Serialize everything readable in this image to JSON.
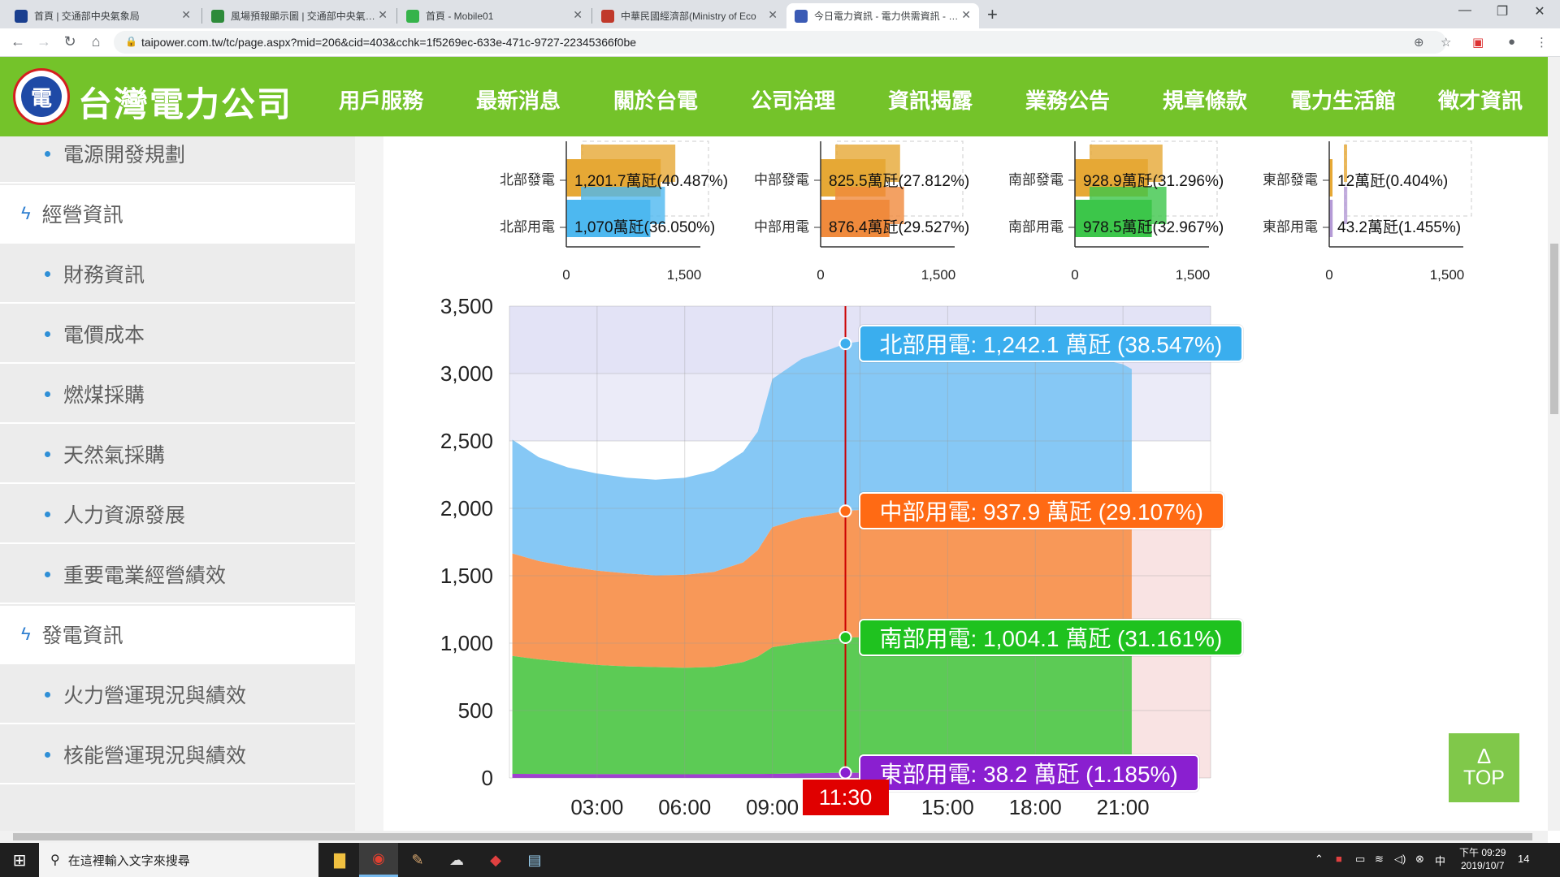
{
  "browser": {
    "tabs": [
      {
        "title": "首頁 | 交通部中央氣象局",
        "favicon_color": "#1a3f8f"
      },
      {
        "title": "風場預報顯示圖 | 交通部中央氣…",
        "favicon_color": "#2e8b3a"
      },
      {
        "title": "首頁 - Mobile01",
        "favicon_color": "#35b34a"
      },
      {
        "title": "中華民國經濟部(Ministry of Eco",
        "favicon_color": "#c0392b"
      },
      {
        "title": "今日電力資訊 - 電力供需資訊 - …",
        "favicon_color": "#3b5bb5"
      }
    ],
    "tab_close": "✕",
    "new_tab": "+",
    "window_controls": [
      "—",
      "❐",
      "✕"
    ],
    "url": "taipower.com.tw/tc/page.aspx?mid=206&cid=403&cchk=1f5269ec-633e-471c-9727-22345366f0be"
  },
  "site": {
    "logo_text": "台灣電力公司",
    "logo_mark": "電",
    "menu": [
      "用戶服務",
      "最新消息",
      "關於台電",
      "公司治理",
      "資訊揭露",
      "業務公告",
      "規章條款",
      "電力生活館",
      "徵才資訊"
    ]
  },
  "sidebar": {
    "items": [
      {
        "label": "電源開發規劃",
        "kind": "sub"
      },
      {
        "label": "經營資訊",
        "kind": "head"
      },
      {
        "label": "財務資訊",
        "kind": "sub"
      },
      {
        "label": "電價成本",
        "kind": "sub"
      },
      {
        "label": "燃煤採購",
        "kind": "sub"
      },
      {
        "label": "天然氣採購",
        "kind": "sub"
      },
      {
        "label": "人力資源發展",
        "kind": "sub"
      },
      {
        "label": "重要電業經營績效",
        "kind": "sub"
      },
      {
        "label": "發電資訊",
        "kind": "head"
      },
      {
        "label": "火力營運現況與績效",
        "kind": "sub"
      },
      {
        "label": "核能營運現況與績效",
        "kind": "sub"
      }
    ]
  },
  "regions": [
    {
      "gen_label": "北部發電",
      "use_label": "北部用電",
      "gen": 1201.7,
      "gen_text": "1,201.7萬瓩(40.487%)",
      "use": 1070,
      "use_text": "1,070萬瓩(36.050%)",
      "gen_color": "#e6a835",
      "use_color": "#4db8f0"
    },
    {
      "gen_label": "中部發電",
      "use_label": "中部用電",
      "gen": 825.5,
      "gen_text": "825.5萬瓩(27.812%)",
      "use": 876.4,
      "use_text": "876.4萬瓩(29.527%)",
      "gen_color": "#e6a835",
      "use_color": "#f08a3c"
    },
    {
      "gen_label": "南部發電",
      "use_label": "南部用電",
      "gen": 928.9,
      "gen_text": "928.9萬瓩(31.296%)",
      "use": 978.5,
      "use_text": "978.5萬瓩(32.967%)",
      "gen_color": "#e6a835",
      "use_color": "#3cc64a"
    },
    {
      "gen_label": "東部發電",
      "use_label": "東部用電",
      "gen": 12,
      "gen_text": "12萬瓩(0.404%)",
      "use": 43.2,
      "use_text": "43.2萬瓩(1.455%)",
      "gen_color": "#e6a835",
      "use_color": "#b49ad6"
    }
  ],
  "region_axis_ticks": [
    "0",
    "1,500"
  ],
  "chart_data": {
    "type": "area",
    "stacked": true,
    "x_ticks": [
      "03:00",
      "06:00",
      "09:00",
      "15:00",
      "18:00",
      "21:00"
    ],
    "y_ticks": [
      0,
      500,
      1000,
      1500,
      2000,
      2500,
      3000,
      3500
    ],
    "ylim": [
      0,
      3500
    ],
    "x_range_hours": [
      0,
      24
    ],
    "current_time": "11:30",
    "series": [
      {
        "name": "東部用電",
        "color": "#a040d0",
        "x": [
          0.1,
          3,
          6,
          9,
          11.5,
          21.3
        ],
        "values": [
          30,
          28,
          27,
          30,
          38.2,
          33
        ]
      },
      {
        "name": "南部用電",
        "color": "#5ccb55",
        "x": [
          0.1,
          1,
          2,
          3,
          4,
          5,
          6,
          7,
          8,
          8.5,
          9,
          10,
          11,
          11.5,
          12,
          13,
          14,
          15,
          16,
          17,
          18,
          19,
          20,
          21,
          21.3
        ],
        "values": [
          875,
          850,
          830,
          810,
          800,
          795,
          790,
          795,
          830,
          870,
          940,
          970,
          990,
          1004,
          1005,
          1000,
          1005,
          1000,
          990,
          980,
          970,
          975,
          960,
          940,
          930
        ]
      },
      {
        "name": "中部用電",
        "color": "#f89858",
        "x": [
          0.1,
          1,
          2,
          3,
          4,
          5,
          6,
          7,
          8,
          8.5,
          9,
          10,
          11,
          11.5,
          12,
          13,
          14,
          15,
          16,
          17,
          18,
          19,
          20,
          21,
          21.3
        ],
        "values": [
          760,
          730,
          710,
          700,
          690,
          680,
          690,
          705,
          740,
          790,
          890,
          925,
          935,
          938,
          945,
          950,
          955,
          950,
          945,
          940,
          935,
          925,
          915,
          905,
          900
        ]
      },
      {
        "name": "北部用電",
        "color": "#86c8f5",
        "x": [
          0.1,
          1,
          2,
          3,
          4,
          5,
          6,
          7,
          8,
          8.5,
          9,
          10,
          11,
          11.5,
          12,
          13,
          14,
          15,
          16,
          17,
          18,
          19,
          20,
          21,
          21.3
        ],
        "values": [
          845,
          770,
          735,
          720,
          710,
          710,
          720,
          750,
          820,
          880,
          1100,
          1180,
          1220,
          1242,
          1250,
          1245,
          1240,
          1245,
          1240,
          1235,
          1230,
          1225,
          1210,
          1190,
          1170
        ]
      }
    ],
    "bands": [
      {
        "from": 2500,
        "to": 3000,
        "color": "#ebebf8"
      },
      {
        "from": 3000,
        "to": 3500,
        "color": "#e3e3f6"
      }
    ],
    "tooltips": [
      {
        "text": "北部用電: 1,242.1 萬瓩 (38.547%)",
        "color": "#3aaeee",
        "value": 3222.3
      },
      {
        "text": "中部用電: 937.9 萬瓩 (29.107%)",
        "color": "#ff6a14",
        "value": 1980.2
      },
      {
        "text": "南部用電: 1,004.1 萬瓩 (31.161%)",
        "color": "#1fc21f",
        "value": 1042.3
      },
      {
        "text": "東部用電: 38.2 萬瓩 (1.185%)",
        "color": "#8a1fd0",
        "value": 38.2
      }
    ]
  },
  "top_button": {
    "arrow": "Δ",
    "label": "TOP"
  },
  "taskbar": {
    "search_placeholder": "在這裡輸入文字來搜尋",
    "clock_time": "下午 09:29",
    "clock_date": "2019/10/7",
    "notification_count": "14"
  }
}
